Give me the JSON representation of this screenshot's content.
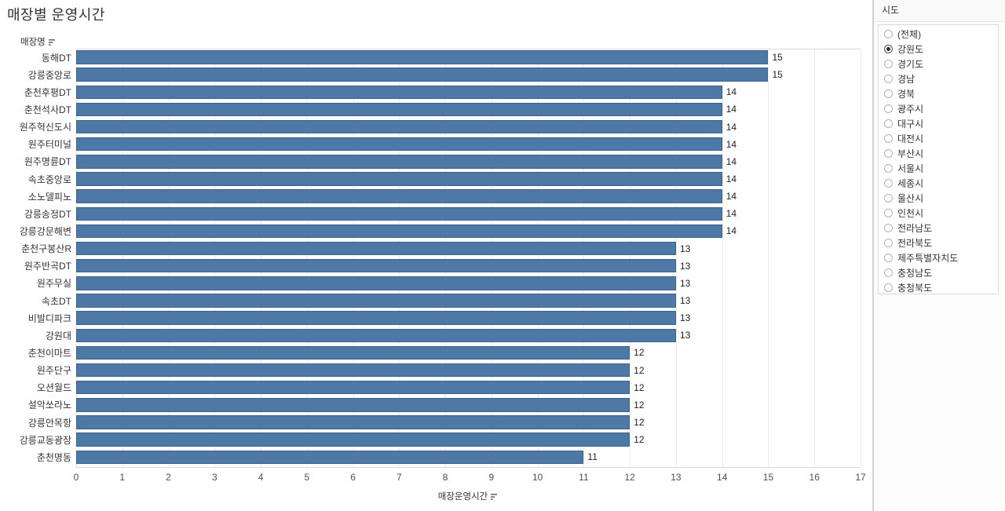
{
  "chart_data": {
    "type": "bar",
    "orientation": "horizontal",
    "title": "매장별 운영시간",
    "row_field_label": "매장명",
    "xlabel": "매장운영시간",
    "xlim": [
      0,
      17
    ],
    "x_ticks": [
      0,
      1,
      2,
      3,
      4,
      5,
      6,
      7,
      8,
      9,
      10,
      11,
      12,
      13,
      14,
      15,
      16,
      17
    ],
    "grid": "vertical-light",
    "legend": "none",
    "bar_color": "#4e79a7",
    "categories": [
      "동해DT",
      "강릉중앙로",
      "춘천후평DT",
      "춘천석사DT",
      "원주혁신도시",
      "원주터미널",
      "원주명륜DT",
      "속초중앙로",
      "소노델피노",
      "강릉송정DT",
      "강릉강문해변",
      "춘천구봉산R",
      "원주반곡DT",
      "원주무실",
      "속초DT",
      "비발디파크",
      "강원대",
      "춘천이마트",
      "원주단구",
      "오션월드",
      "설악쏘라노",
      "강릉안목항",
      "강릉교동광장",
      "춘천명동"
    ],
    "values": [
      15,
      15,
      14,
      14,
      14,
      14,
      14,
      14,
      14,
      14,
      14,
      13,
      13,
      13,
      13,
      13,
      13,
      12,
      12,
      12,
      12,
      12,
      12,
      11
    ]
  },
  "filter_panel": {
    "title": "시도",
    "selected": "강원도",
    "options": [
      "(전체)",
      "강원도",
      "경기도",
      "경남",
      "경북",
      "광주시",
      "대구시",
      "대전시",
      "부산시",
      "서울시",
      "세종시",
      "울산시",
      "인천시",
      "전라남도",
      "전라북도",
      "제주특별자치도",
      "충청남도",
      "충청북도"
    ]
  },
  "icons": {
    "sort_icon": "sort-descending"
  },
  "colors": {
    "bar": "#4e79a7",
    "gridline": "#ececec",
    "divider": "#d2d2d2",
    "text": "#333333",
    "panel_header_bg": "#f9f9f9"
  }
}
